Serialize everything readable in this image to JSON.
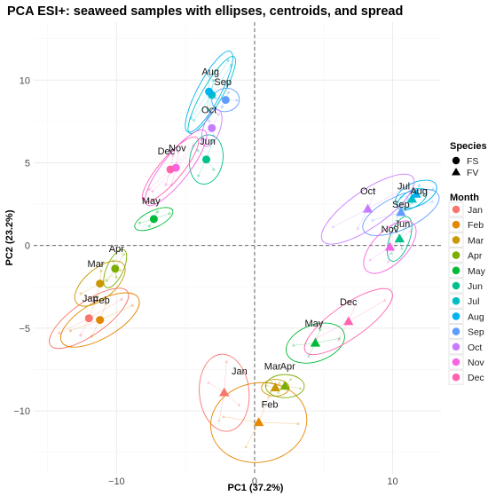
{
  "chart_data": {
    "type": "scatter",
    "title": "PCA ESI+: seaweed samples with ellipses, centroids, and spread",
    "xlabel": "PC1 (37.2%)",
    "ylabel": "PC2 (23.2%)",
    "xlim": [
      -16,
      13.5
    ],
    "ylim": [
      -13.8,
      13.5
    ],
    "x_ticks": [
      -10,
      0,
      10
    ],
    "y_ticks": [
      -10,
      -5,
      0,
      5,
      10
    ],
    "grid": true,
    "reference_lines": {
      "x": 0,
      "y": 0,
      "style": "dashed"
    },
    "legend_species": {
      "title": "Species",
      "items": [
        {
          "label": "FS",
          "shape": "circle"
        },
        {
          "label": "FV",
          "shape": "triangle"
        }
      ]
    },
    "legend_month": {
      "title": "Month",
      "items": [
        {
          "label": "Jan",
          "color": "#F8766D"
        },
        {
          "label": "Feb",
          "color": "#E58700"
        },
        {
          "label": "Mar",
          "color": "#C99800"
        },
        {
          "label": "Apr",
          "color": "#7CAE00"
        },
        {
          "label": "May",
          "color": "#00BA38"
        },
        {
          "label": "Jun",
          "color": "#00C08B"
        },
        {
          "label": "Jul",
          "color": "#00BFC4"
        },
        {
          "label": "Aug",
          "color": "#00B4F0"
        },
        {
          "label": "Sep",
          "color": "#619CFF"
        },
        {
          "label": "Oct",
          "color": "#C77CFF"
        },
        {
          "label": "Nov",
          "color": "#F564E3"
        },
        {
          "label": "Dec",
          "color": "#FF64B0"
        }
      ]
    },
    "centroids": [
      {
        "species": "FS",
        "month": "Jan",
        "x": -12,
        "y": -4.4,
        "rx": 3.4,
        "ry": 1.0,
        "angle": 35
      },
      {
        "species": "FS",
        "month": "Feb",
        "x": -11.2,
        "y": -4.5,
        "rx": 3.2,
        "ry": 1.1,
        "angle": 30
      },
      {
        "species": "FS",
        "month": "Mar",
        "x": -11.2,
        "y": -2.3,
        "rx": 2.2,
        "ry": 0.9,
        "angle": 40
      },
      {
        "species": "FS",
        "month": "Apr",
        "x": -10.1,
        "y": -1.4,
        "rx": 1.5,
        "ry": 0.5,
        "angle": 65
      },
      {
        "species": "FS",
        "month": "May",
        "x": -7.3,
        "y": 1.6,
        "rx": 1.5,
        "ry": 0.5,
        "angle": 25
      },
      {
        "species": "FS",
        "month": "Jun",
        "x": -3.5,
        "y": 5.2,
        "rx": 1.8,
        "ry": 1.0,
        "angle": 80
      },
      {
        "species": "FS",
        "month": "Jul",
        "x": -3.1,
        "y": 9.1,
        "rx": 3.2,
        "ry": 0.6,
        "angle": 60
      },
      {
        "species": "FS",
        "month": "Aug",
        "x": -3.3,
        "y": 9.3,
        "rx": 3.3,
        "ry": 0.7,
        "angle": 62
      },
      {
        "species": "FS",
        "month": "Sep",
        "x": -2.1,
        "y": 8.8,
        "rx": 1.0,
        "ry": 0.7,
        "angle": 10
      },
      {
        "species": "FS",
        "month": "Oct",
        "x": -3.1,
        "y": 7.1,
        "rx": 1.4,
        "ry": 0.5,
        "angle": 70
      },
      {
        "species": "FS",
        "month": "Nov",
        "x": -5.7,
        "y": 4.7,
        "rx": 3.4,
        "ry": 0.8,
        "angle": 52
      },
      {
        "species": "FS",
        "month": "Dec",
        "x": -6.1,
        "y": 4.6,
        "rx": 3.0,
        "ry": 0.7,
        "angle": 50
      },
      {
        "species": "FV",
        "month": "Jan",
        "x": -2.2,
        "y": -8.9,
        "rx": 2.8,
        "ry": 1.5,
        "angle": 95
      },
      {
        "species": "FV",
        "month": "Feb",
        "x": 0.3,
        "y": -10.7,
        "rx": 3.5,
        "ry": 2.4,
        "angle": 10
      },
      {
        "species": "FV",
        "month": "Mar",
        "x": 1.5,
        "y": -8.6,
        "rx": 1.0,
        "ry": 0.5,
        "angle": 0
      },
      {
        "species": "FV",
        "month": "Apr",
        "x": 2.2,
        "y": -8.5,
        "rx": 1.4,
        "ry": 0.7,
        "angle": 0
      },
      {
        "species": "FV",
        "month": "May",
        "x": 4.4,
        "y": -5.9,
        "rx": 2.2,
        "ry": 1.1,
        "angle": 20
      },
      {
        "species": "FV",
        "month": "Jun",
        "x": 10.5,
        "y": 0.4,
        "rx": 1.7,
        "ry": 0.6,
        "angle": 70
      },
      {
        "species": "FV",
        "month": "Jul",
        "x": 11.4,
        "y": 2.8,
        "rx": 1.2,
        "ry": 0.5,
        "angle": 30
      },
      {
        "species": "FV",
        "month": "Aug",
        "x": 11.7,
        "y": 3.1,
        "rx": 1.6,
        "ry": 0.7,
        "angle": 25
      },
      {
        "species": "FV",
        "month": "Sep",
        "x": 10.6,
        "y": 2.0,
        "rx": 3.0,
        "ry": 1.0,
        "angle": 25
      },
      {
        "species": "FV",
        "month": "Oct",
        "x": 8.2,
        "y": 2.2,
        "rx": 4.0,
        "ry": 1.1,
        "angle": 35
      },
      {
        "species": "FV",
        "month": "Nov",
        "x": 9.8,
        "y": -0.1,
        "rx": 2.4,
        "ry": 1.0,
        "angle": 45
      },
      {
        "species": "FV",
        "month": "Dec",
        "x": 6.8,
        "y": -4.6,
        "rx": 3.8,
        "ry": 1.0,
        "angle": 35
      }
    ],
    "labels": [
      {
        "text": "Aug",
        "x": -3.2,
        "y": 10.3
      },
      {
        "text": "Sep",
        "x": -2.3,
        "y": 9.7
      },
      {
        "text": "Oct",
        "x": -3.3,
        "y": 8.0
      },
      {
        "text": "Nov",
        "x": -5.6,
        "y": 5.7
      },
      {
        "text": "Dec",
        "x": -6.4,
        "y": 5.5
      },
      {
        "text": "Jun",
        "x": -3.4,
        "y": 6.1
      },
      {
        "text": "May",
        "x": -7.5,
        "y": 2.5
      },
      {
        "text": "Apr",
        "x": -10.0,
        "y": -0.4
      },
      {
        "text": "Mar",
        "x": -11.5,
        "y": -1.3
      },
      {
        "text": "Jan",
        "x": -11.9,
        "y": -3.4
      },
      {
        "text": "Feb",
        "x": -11.1,
        "y": -3.5
      },
      {
        "text": "Jan",
        "x": -1.1,
        "y": -7.8
      },
      {
        "text": "Mar",
        "x": 1.3,
        "y": -7.5
      },
      {
        "text": "Apr",
        "x": 2.4,
        "y": -7.5
      },
      {
        "text": "Feb",
        "x": 1.1,
        "y": -9.8
      },
      {
        "text": "May",
        "x": 4.3,
        "y": -4.9
      },
      {
        "text": "Dec",
        "x": 6.8,
        "y": -3.6
      },
      {
        "text": "Jul",
        "x": 10.8,
        "y": 3.4
      },
      {
        "text": "Aug",
        "x": 11.9,
        "y": 3.1
      },
      {
        "text": "Sep",
        "x": 10.6,
        "y": 2.3
      },
      {
        "text": "Oct",
        "x": 8.2,
        "y": 3.1
      },
      {
        "text": "Jun",
        "x": 10.7,
        "y": 1.1
      },
      {
        "text": "Nov",
        "x": 9.8,
        "y": 0.8
      }
    ]
  }
}
